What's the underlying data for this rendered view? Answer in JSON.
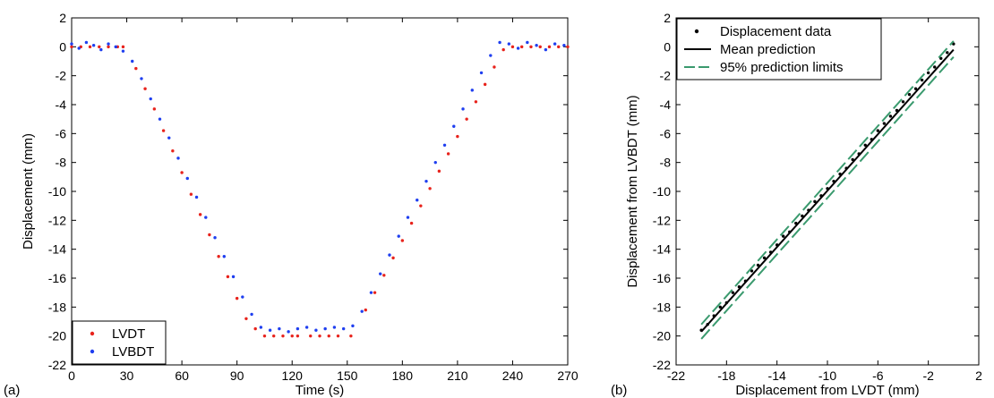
{
  "chart_data": [
    {
      "type": "scatter",
      "panel_label": "(a)",
      "title": "",
      "xlabel": "Time (s)",
      "ylabel": "Displacement (mm)",
      "xlim": [
        0,
        270
      ],
      "ylim": [
        -22,
        2
      ],
      "xticks": [
        "0",
        "30",
        "60",
        "90",
        "120",
        "150",
        "180",
        "210",
        "240",
        "270"
      ],
      "yticks": [
        "2",
        "0",
        "-2",
        "-4",
        "-6",
        "-8",
        "-10",
        "-12",
        "-14",
        "-16",
        "-18",
        "-20",
        "-22"
      ],
      "grid": false,
      "legend": "bottom-left",
      "series": [
        {
          "name": "LVDT",
          "color": "#e8231c",
          "marker": "dot",
          "x": [
            0,
            5,
            10,
            15,
            20,
            25,
            28,
            35,
            40,
            45,
            50,
            55,
            60,
            65,
            70,
            75,
            80,
            85,
            90,
            95,
            100,
            105,
            110,
            115,
            120,
            123,
            130,
            135,
            140,
            145,
            152,
            160,
            165,
            170,
            175,
            180,
            185,
            190,
            195,
            200,
            205,
            210,
            215,
            220,
            225,
            230,
            235,
            240,
            245,
            250,
            255,
            260,
            265,
            270
          ],
          "y": [
            0,
            0,
            0,
            0,
            0,
            0,
            0,
            -1.5,
            -2.9,
            -4.3,
            -5.8,
            -7.2,
            -8.7,
            -10.2,
            -11.6,
            -13.0,
            -14.5,
            -15.9,
            -17.4,
            -18.8,
            -19.5,
            -20,
            -20,
            -20,
            -20,
            -20,
            -20,
            -20,
            -20,
            -20,
            -20,
            -18.2,
            -17.0,
            -15.8,
            -14.6,
            -13.4,
            -12.2,
            -11.0,
            -9.8,
            -8.6,
            -7.4,
            -6.2,
            -5.0,
            -3.8,
            -2.6,
            -1.4,
            -0.2,
            0,
            0,
            0,
            0,
            0,
            0,
            0
          ]
        },
        {
          "name": "LVBDT",
          "color": "#1f3ff0",
          "marker": "dot",
          "x": [
            0,
            4,
            8,
            12,
            16,
            20,
            24,
            28,
            33,
            38,
            43,
            48,
            53,
            58,
            63,
            68,
            73,
            78,
            83,
            88,
            93,
            98,
            103,
            108,
            113,
            118,
            123,
            128,
            133,
            138,
            143,
            148,
            153,
            158,
            163,
            168,
            173,
            178,
            183,
            188,
            193,
            198,
            203,
            208,
            213,
            218,
            223,
            228,
            233,
            238,
            243,
            248,
            253,
            258,
            263,
            268
          ],
          "y": [
            0.2,
            -0.1,
            0.3,
            0.1,
            -0.2,
            0.2,
            0.0,
            -0.3,
            -1.0,
            -2.2,
            -3.6,
            -5.0,
            -6.3,
            -7.7,
            -9.1,
            -10.4,
            -11.8,
            -13.2,
            -14.5,
            -15.9,
            -17.3,
            -18.5,
            -19.4,
            -19.6,
            -19.5,
            -19.7,
            -19.5,
            -19.4,
            -19.6,
            -19.5,
            -19.4,
            -19.5,
            -19.3,
            -18.3,
            -17.0,
            -15.7,
            -14.4,
            -13.1,
            -11.8,
            -10.6,
            -9.3,
            -8.0,
            -6.8,
            -5.5,
            -4.3,
            -3.0,
            -1.8,
            -0.6,
            0.3,
            0.2,
            -0.1,
            0.3,
            0.1,
            -0.2,
            0.2,
            0.1
          ]
        }
      ]
    },
    {
      "type": "scatter",
      "panel_label": "(b)",
      "title": "",
      "xlabel": "Displacement from LVDT (mm)",
      "ylabel": "Displacement from LVBDT (mm)",
      "xlim": [
        -22,
        2
      ],
      "ylim": [
        -22,
        2
      ],
      "xticks": [
        "-22",
        "-18",
        "-14",
        "-10",
        "-6",
        "-2",
        "2"
      ],
      "yticks": [
        "2",
        "0",
        "-2",
        "-4",
        "-6",
        "-8",
        "-10",
        "-12",
        "-14",
        "-16",
        "-18",
        "-20",
        "-22"
      ],
      "grid": false,
      "legend": "top-left",
      "series": [
        {
          "name": "Displacement data",
          "color": "#000000",
          "marker": "dot",
          "x": [
            -20,
            -19.5,
            -19,
            -18.5,
            -18,
            -17.5,
            -17,
            -16.5,
            -16,
            -15.5,
            -15,
            -14.5,
            -14,
            -13.5,
            -13,
            -12.5,
            -12,
            -11.5,
            -11,
            -10.5,
            -10,
            -9.5,
            -9,
            -8.5,
            -8,
            -7.5,
            -7,
            -6.5,
            -6,
            -5.5,
            -5,
            -4.5,
            -4,
            -3.5,
            -3,
            -2.5,
            -2,
            -1.5,
            -1,
            -0.5,
            0
          ],
          "y": [
            -19.6,
            -19.2,
            -18.6,
            -18.0,
            -17.7,
            -17.0,
            -16.6,
            -16.2,
            -15.5,
            -15.1,
            -14.6,
            -14.2,
            -13.7,
            -13.1,
            -12.8,
            -12.2,
            -11.7,
            -11.3,
            -10.7,
            -10.3,
            -9.8,
            -9.3,
            -8.8,
            -8.4,
            -7.8,
            -7.4,
            -6.8,
            -6.4,
            -5.8,
            -5.3,
            -4.8,
            -4.4,
            -3.8,
            -3.3,
            -2.9,
            -2.3,
            -1.8,
            -1.4,
            -0.8,
            -0.4,
            0.2
          ]
        },
        {
          "name": "Mean prediction",
          "color": "#000000",
          "line": "solid",
          "x": [
            -20,
            0
          ],
          "y": [
            -19.7,
            -0.2
          ]
        },
        {
          "name": "95% prediction limits",
          "color": "#3a9a6e",
          "line": "dashed",
          "x": [
            -20,
            0
          ],
          "y_upper": [
            -19.2,
            0.4
          ],
          "y_lower": [
            -20.2,
            -0.7
          ]
        }
      ]
    }
  ]
}
